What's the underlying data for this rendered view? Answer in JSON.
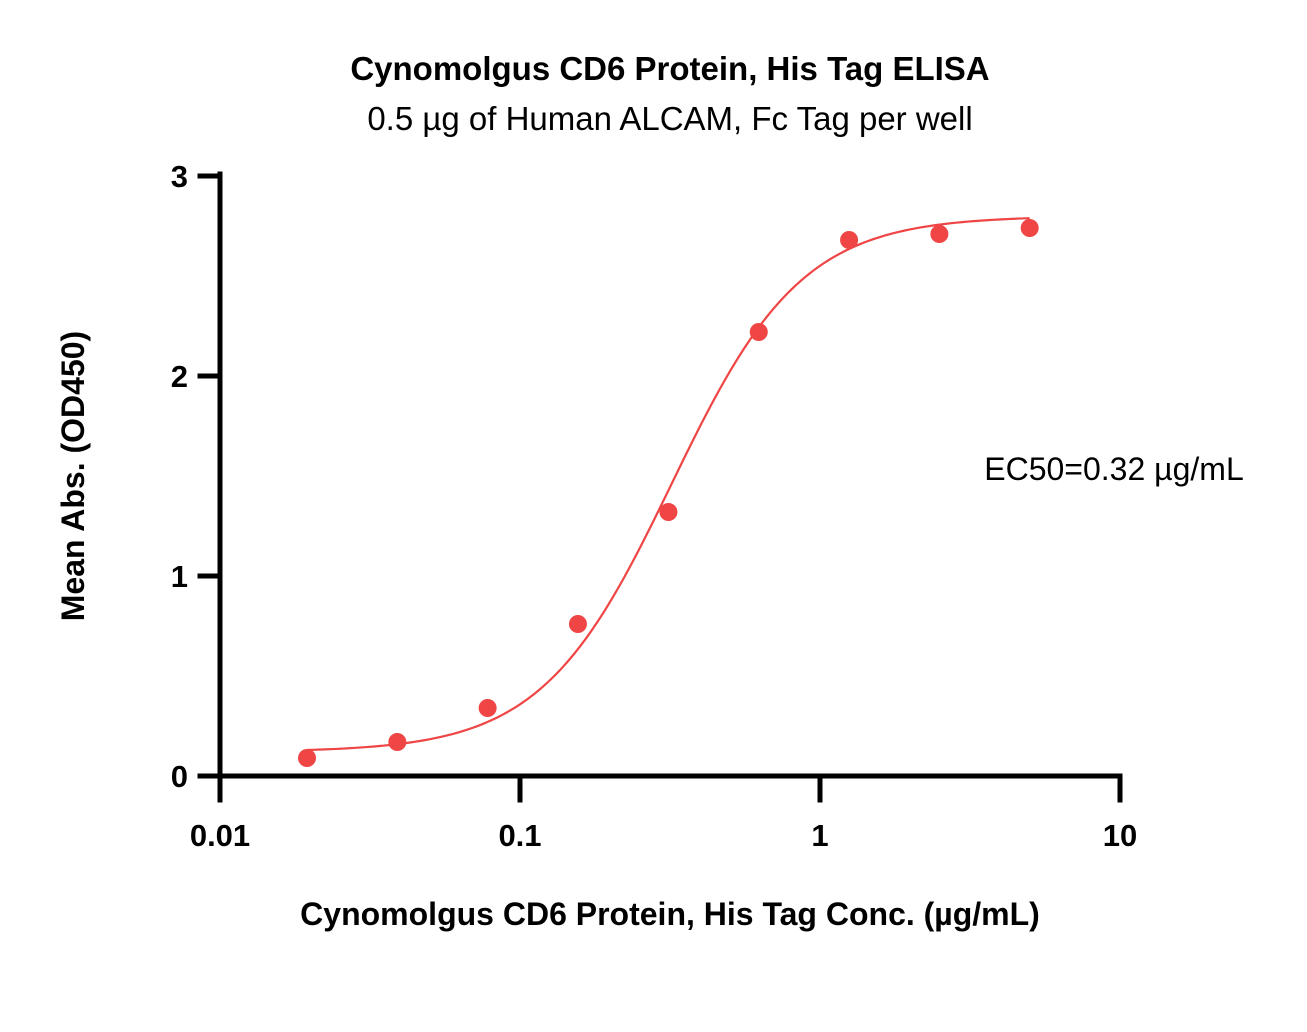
{
  "chart_data": {
    "type": "scatter",
    "title": "Cynomolgus CD6 Protein, His Tag ELISA",
    "subtitle": "0.5 µg of Human ALCAM, Fc Tag per well",
    "xlabel": "Cynomolgus CD6 Protein, His Tag Conc. (µg/mL)",
    "ylabel": "Mean Abs. (OD450)",
    "xscale": "log",
    "xlim": [
      0.01,
      10
    ],
    "ylim": [
      0,
      3
    ],
    "x_ticks": [
      {
        "value": 0.01,
        "label": "0.01"
      },
      {
        "value": 0.1,
        "label": "0.1"
      },
      {
        "value": 1,
        "label": "1"
      },
      {
        "value": 10,
        "label": "10"
      }
    ],
    "y_ticks": [
      {
        "value": 0,
        "label": "0"
      },
      {
        "value": 1,
        "label": "1"
      },
      {
        "value": 2,
        "label": "2"
      },
      {
        "value": 3,
        "label": "3"
      }
    ],
    "series": [
      {
        "x": [
          0.0195,
          0.039,
          0.078,
          0.156,
          0.3125,
          0.625,
          1.25,
          2.5,
          5.0
        ],
        "y": [
          0.09,
          0.17,
          0.34,
          0.76,
          1.32,
          2.22,
          2.68,
          2.71,
          2.74
        ],
        "color": "#ef4545",
        "fit": "4PL",
        "fit_params": {
          "bottom": 0.12,
          "top": 2.8,
          "ec50": 0.32,
          "hill": 2.0
        }
      }
    ],
    "annotations": [
      "EC50=0.32 µg/mL"
    ],
    "grid": false,
    "legend": "none"
  }
}
